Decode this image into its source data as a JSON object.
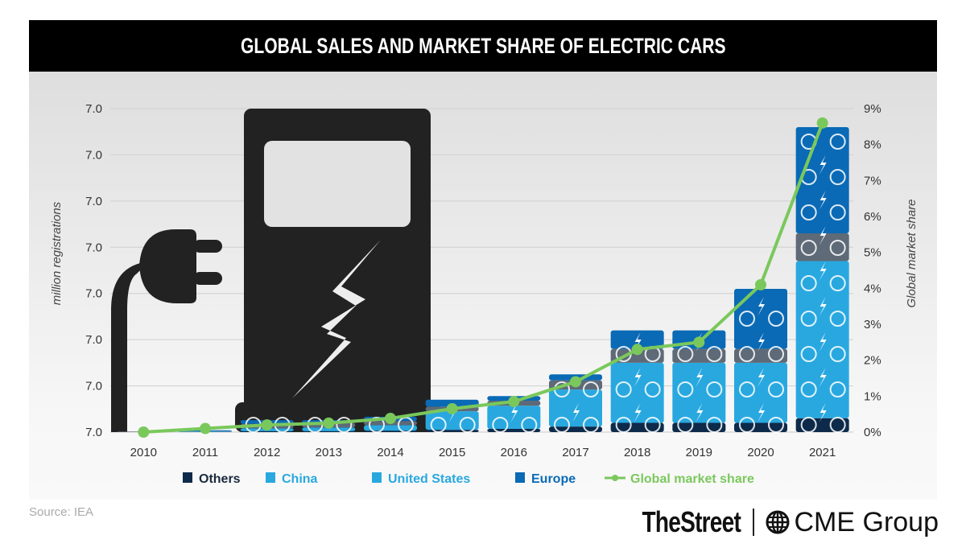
{
  "header": {
    "title": "GLOBAL SALES AND MARKET SHARE OF ELECTRIC CARS"
  },
  "footer": {
    "source": "Source: IEA",
    "logo_left": "TheStreet",
    "logo_right": "CME Group"
  },
  "colors": {
    "others": "#0d2a4a",
    "china": "#29a8e0",
    "united_states": "#5e6a77",
    "europe": "#0a6ab5",
    "market_share": "#7ac85c",
    "icon_dark": "#222222"
  },
  "chart_data": {
    "type": "bar",
    "title": "GLOBAL SALES AND MARKET SHARE OF ELECTRIC CARS",
    "xlabel": "",
    "ylabel": "million registrations",
    "y2label": "Global market share",
    "categories": [
      "2010",
      "2011",
      "2012",
      "2013",
      "2014",
      "2015",
      "2016",
      "2017",
      "2018",
      "2019",
      "2020",
      "2021"
    ],
    "y_tick_labels": [
      "7.0",
      "7.0",
      "7.0",
      "7.0",
      "7.0",
      "7.0",
      "7.0",
      "7.0"
    ],
    "ylim": [
      0,
      7
    ],
    "y2_tick_labels": [
      "0%",
      "1%",
      "2%",
      "3%",
      "4%",
      "5%",
      "6%",
      "7%",
      "8%",
      "9%"
    ],
    "y2lim": [
      0,
      9
    ],
    "grid": true,
    "legend_position": "bottom",
    "series": [
      {
        "name": "Others",
        "key": "others",
        "values": [
          0.0,
          0.0,
          0.02,
          0.02,
          0.03,
          0.05,
          0.07,
          0.12,
          0.2,
          0.2,
          0.2,
          0.3
        ]
      },
      {
        "name": "China",
        "key": "china",
        "values": [
          0.0,
          0.01,
          0.06,
          0.08,
          0.12,
          0.4,
          0.5,
          0.8,
          1.3,
          1.3,
          1.3,
          3.4
        ]
      },
      {
        "name": "United States",
        "key": "united_states",
        "values": [
          0.01,
          0.01,
          0.1,
          0.1,
          0.09,
          0.1,
          0.11,
          0.2,
          0.3,
          0.3,
          0.3,
          0.6
        ]
      },
      {
        "name": "Europe",
        "key": "europe",
        "values": [
          0.0,
          0.02,
          0.08,
          0.06,
          0.09,
          0.15,
          0.1,
          0.13,
          0.4,
          0.4,
          1.3,
          2.3
        ]
      }
    ],
    "line_series": {
      "name": "Global market share",
      "unit": "%",
      "values": [
        0.0,
        0.1,
        0.2,
        0.25,
        0.38,
        0.65,
        0.85,
        1.4,
        2.3,
        2.5,
        4.1,
        8.6
      ]
    }
  }
}
